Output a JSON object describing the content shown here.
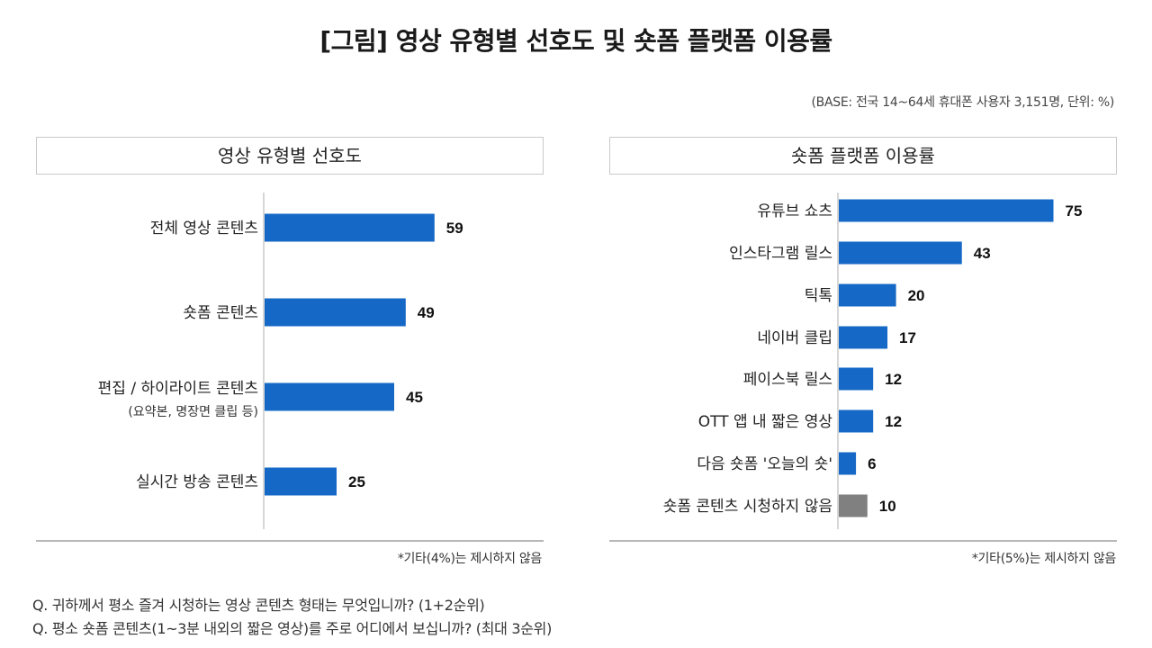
{
  "title": "[그림] 영상 유형별 선호도 및 숏폼 플랫폼 이용률",
  "base_note": "(BASE: 전국 14~64세 휴대폰 사용자 3,151명, 단위: %)",
  "colors": {
    "bar": "#1668c6",
    "bar_gray": "#808080",
    "axis": "#c8c8c8"
  },
  "chart_data": [
    {
      "type": "bar",
      "orientation": "horizontal",
      "title": "영상 유형별 선호도",
      "categories": [
        "전체 영상 콘텐츠",
        "숏폼 콘텐츠",
        "편집 / 하이라이트 콘텐츠",
        "실시간 방송 콘텐츠"
      ],
      "category_subtitles": [
        "",
        "",
        "(요약본, 명장면 클립 등)",
        ""
      ],
      "values": [
        59,
        49,
        45,
        25
      ],
      "xlim": [
        0,
        100
      ],
      "grid": false,
      "legend": "none",
      "footnote": "*기타(4%)는 제시하지 않음"
    },
    {
      "type": "bar",
      "orientation": "horizontal",
      "title": "숏폼 플랫폼 이용률",
      "categories": [
        "유튜브 쇼츠",
        "인스타그램 릴스",
        "틱톡",
        "네이버 클립",
        "페이스북 릴스",
        "OTT 앱 내 짧은 영상",
        "다음 숏폼 '오늘의 숏'",
        "숏폼 콘텐츠 시청하지 않음"
      ],
      "values": [
        75,
        43,
        20,
        17,
        12,
        12,
        6,
        10
      ],
      "highlight_last_gray": true,
      "xlim": [
        0,
        100
      ],
      "grid": false,
      "legend": "none",
      "footnote": "*기타(5%)는 제시하지 않음"
    }
  ],
  "questions": [
    "Q. 귀하께서 평소 즐겨 시청하는 영상 콘텐츠 형태는 무엇입니까? (1+2순위)",
    "Q. 평소 숏폼 콘텐츠(1~3분 내외의 짧은 영상)를 주로 어디에서 보십니까? (최대 3순위)"
  ]
}
